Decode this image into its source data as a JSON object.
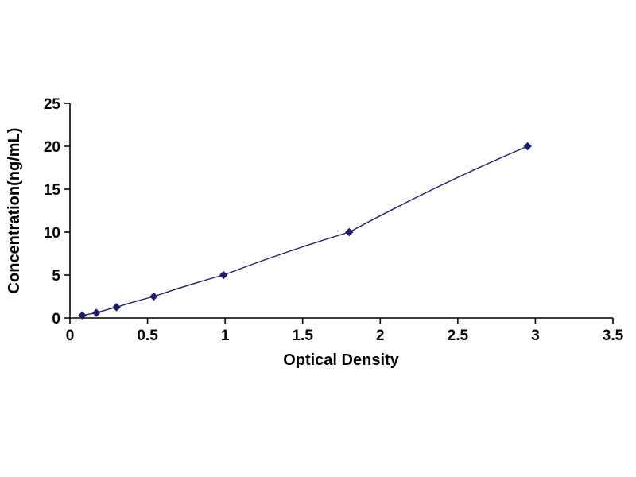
{
  "chart_data": {
    "type": "line",
    "title": "",
    "xlabel": "Optical Density",
    "ylabel": "Concentration(ng/mL)",
    "x": [
      0.08,
      0.17,
      0.3,
      0.54,
      0.99,
      1.8,
      2.95
    ],
    "y": [
      0.3,
      0.6,
      1.25,
      2.5,
      5,
      10,
      20
    ],
    "xlim": [
      0,
      3.5
    ],
    "ylim": [
      0,
      25
    ],
    "x_ticks": [
      0,
      0.5,
      1,
      1.5,
      2,
      2.5,
      3,
      3.5
    ],
    "y_ticks": [
      0,
      5,
      10,
      15,
      20,
      25
    ],
    "x_tick_labels": [
      "0",
      "0.5",
      "1",
      "1.5",
      "2",
      "2.5",
      "3",
      "3.5"
    ],
    "y_tick_labels": [
      "0",
      "5",
      "10",
      "15",
      "20",
      "25"
    ],
    "grid": false,
    "legend": "none",
    "marker": "diamond",
    "line_color": "#1b1b6f",
    "marker_color": "#1b1b6f",
    "axis_color": "#000000"
  }
}
